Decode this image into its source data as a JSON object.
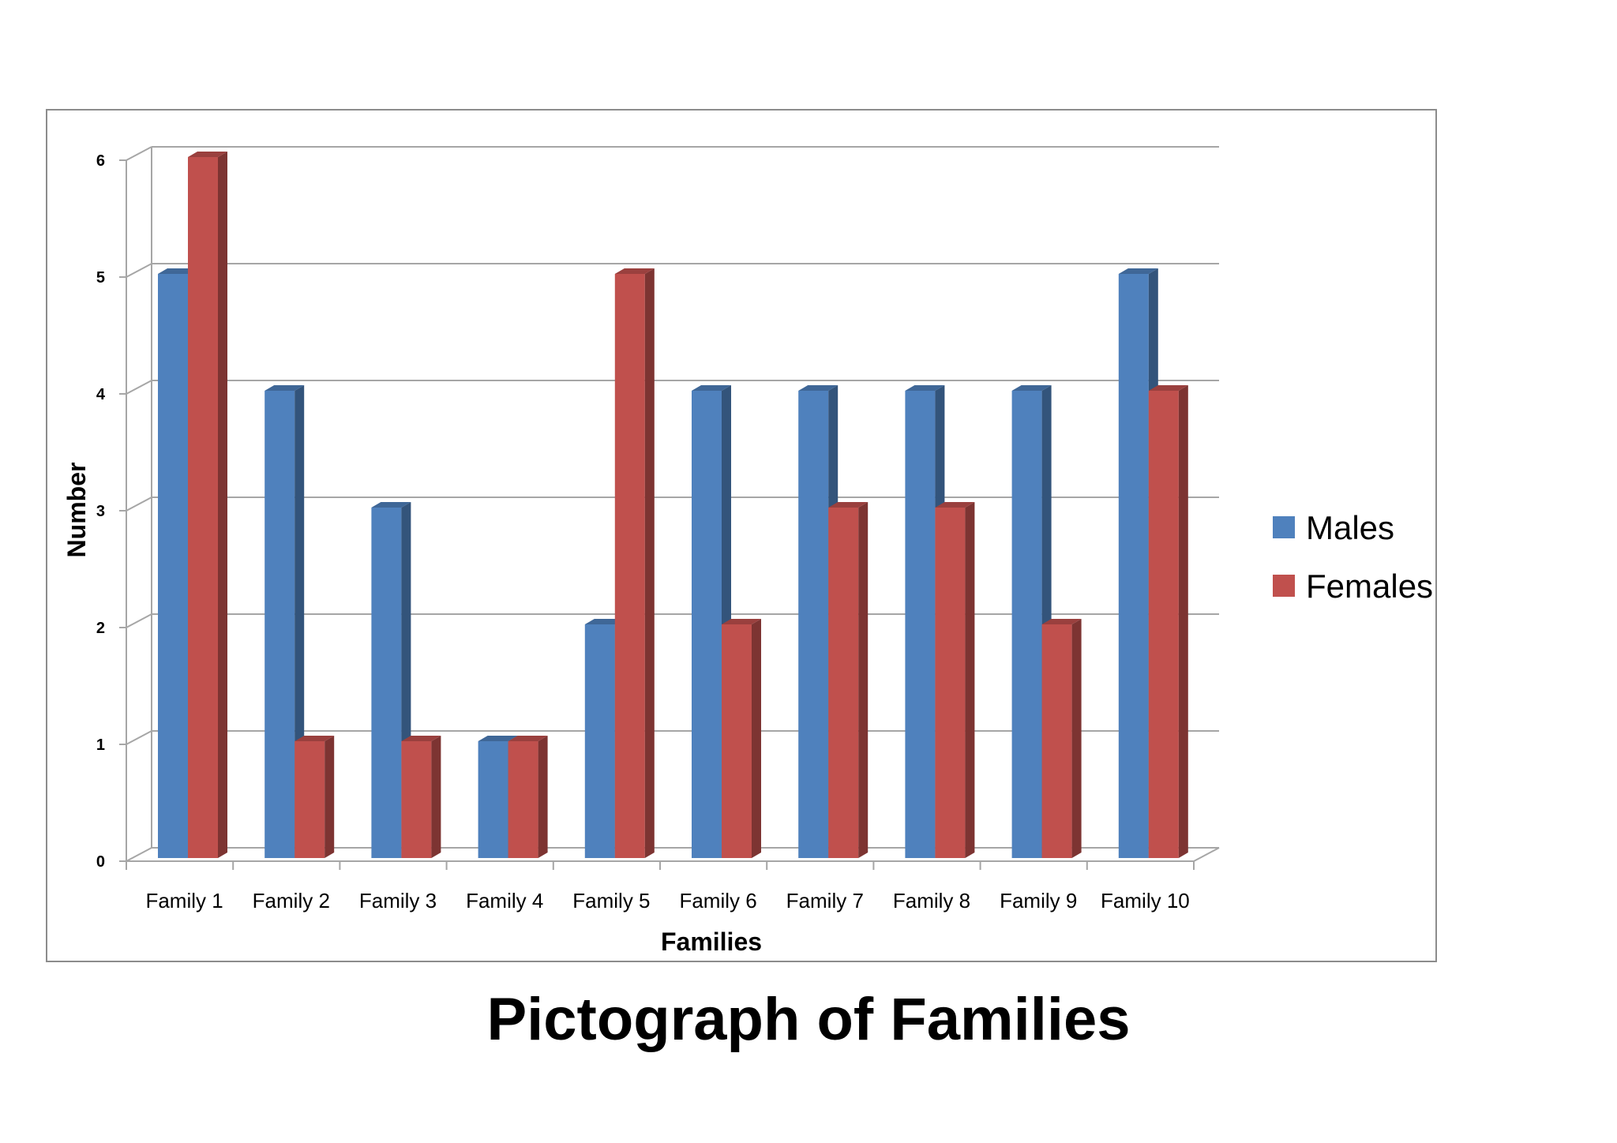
{
  "chart_data": {
    "type": "bar",
    "title": "Pictograph of Families",
    "xlabel": "Families",
    "ylabel": "Number",
    "ylim": [
      0,
      6
    ],
    "yticks": [
      "0",
      "1",
      "2",
      "3",
      "4",
      "5",
      "6"
    ],
    "grid": true,
    "legend_position": "right",
    "categories": [
      "Family 1",
      "Family 2",
      "Family 3",
      "Family 4",
      "Family 5",
      "Family 6",
      "Family 7",
      "Family 8",
      "Family 9",
      "Family 10"
    ],
    "series": [
      {
        "name": "Males",
        "color": "#4f81bd",
        "values": [
          5,
          4,
          3,
          1,
          2,
          4,
          4,
          4,
          4,
          5
        ]
      },
      {
        "name": "Females",
        "color": "#c0504d",
        "values": [
          6,
          1,
          1,
          1,
          5,
          2,
          3,
          3,
          2,
          4
        ]
      }
    ]
  }
}
